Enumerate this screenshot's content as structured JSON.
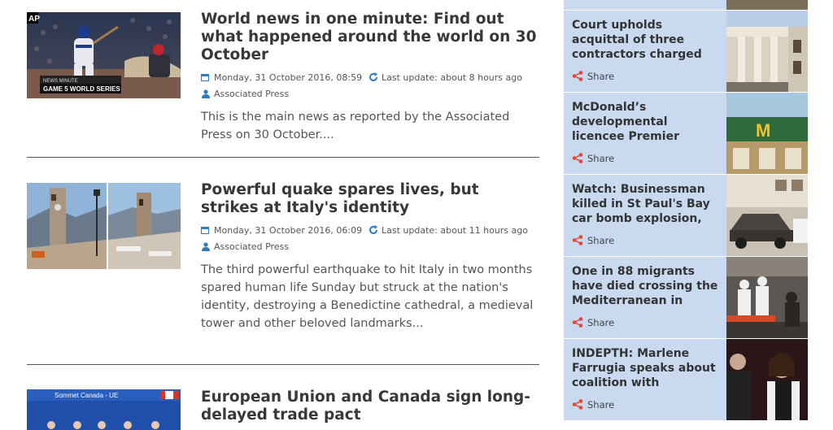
{
  "articles": [
    {
      "title": "World news in one minute: Find out what happened around the world on 30 October",
      "date": "Monday, 31 October 2016, 08:59",
      "update": "Last update: about 8 hours ago",
      "author": "Associated Press",
      "excerpt": "This is the main news as reported by the Associated Press on 30 October....",
      "thumb_caption_top": "AP",
      "thumb_caption_small": "NEWS MINUTE",
      "thumb_caption": "GAME 5 WORLD SERIES"
    },
    {
      "title": "Powerful quake spares lives, but strikes at Italy's identity",
      "date": "Monday, 31 October 2016, 06:09",
      "update": "Last update: about 11 hours ago",
      "author": "Associated Press",
      "excerpt": "The third powerful earthquake to hit Italy in two months spared human life Sunday but struck at the nation's identity, destroying a Benedictine cathedral, a medieval tower and other beloved landmarks..."
    },
    {
      "title": "European Union and Canada sign long-delayed trade pact",
      "thumb_caption": "Sommet Canada - UE"
    }
  ],
  "sidebar": {
    "share_label": "Share",
    "items": [
      {
        "title": "Court upholds acquittal of three contractors charged"
      },
      {
        "title": "McDonald’s developmental licencee Premier"
      },
      {
        "title": "Watch: Businessman killed in St Paul's Bay car bomb explosion,"
      },
      {
        "title": "One in 88 migrants have died crossing the Mediterranean in"
      },
      {
        "title": "INDEPTH: Marlene Farrugia speaks about coalition with"
      }
    ]
  },
  "colors": {
    "accent": "#2b7cc5",
    "share_icon": "#e8442e",
    "sidebar_bg": "#c8d9f0"
  }
}
